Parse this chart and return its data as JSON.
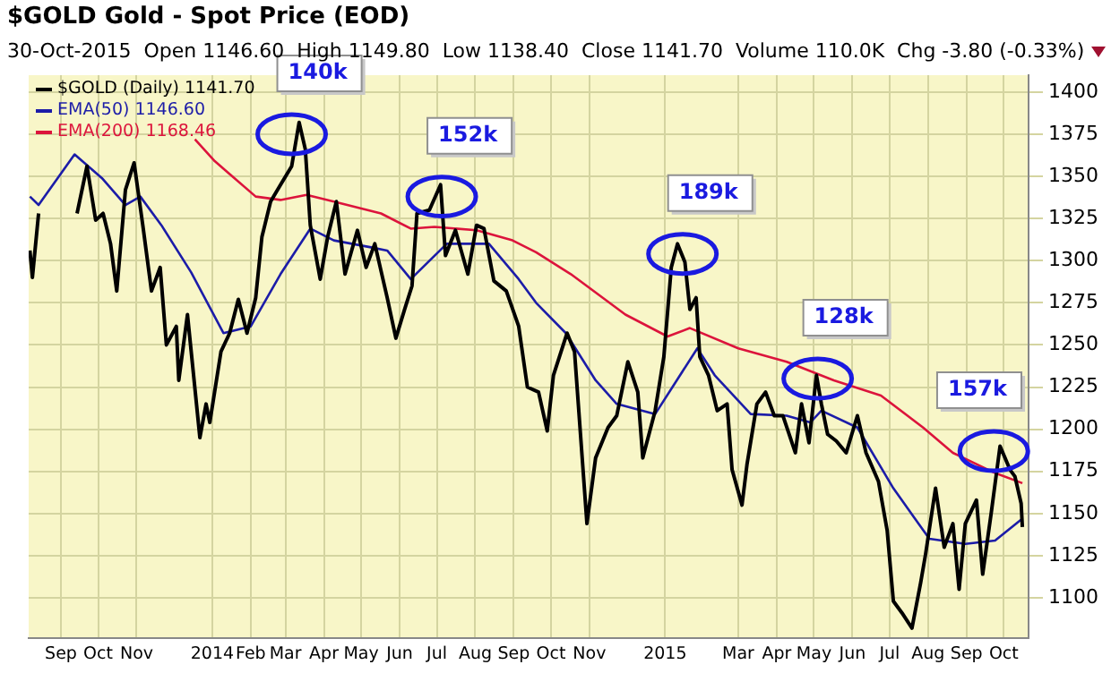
{
  "chart_data": {
    "type": "line",
    "title": "$GOLD Gold - Spot Price (EOD)",
    "subtitle": "30-Oct-2015  Open 1146.60  High 1149.80  Low 1138.40  Close 1141.70  Volume 110.0K  Chg -3.80 (-0.33%)",
    "xlim": [
      "2013-08-20",
      "2015-11-04"
    ],
    "xticks": [
      {
        "value": "2013-09-15",
        "label": "Sep"
      },
      {
        "value": "2013-10-15",
        "label": "Oct"
      },
      {
        "value": "2013-11-15",
        "label": "Nov"
      },
      {
        "value": "2014-01-15",
        "label": "2014"
      },
      {
        "value": "2014-02-15",
        "label": "Feb"
      },
      {
        "value": "2014-03-15",
        "label": "Mar"
      },
      {
        "value": "2014-04-15",
        "label": "Apr"
      },
      {
        "value": "2014-05-15",
        "label": "May"
      },
      {
        "value": "2014-06-15",
        "label": "Jun"
      },
      {
        "value": "2014-07-15",
        "label": "Jul"
      },
      {
        "value": "2014-08-15",
        "label": "Aug"
      },
      {
        "value": "2014-09-15",
        "label": "Sep"
      },
      {
        "value": "2014-10-15",
        "label": "Oct"
      },
      {
        "value": "2014-11-15",
        "label": "Nov"
      },
      {
        "value": "2015-01-15",
        "label": "2015"
      },
      {
        "value": "2015-03-15",
        "label": "Mar"
      },
      {
        "value": "2015-04-15",
        "label": "Apr"
      },
      {
        "value": "2015-05-15",
        "label": "May"
      },
      {
        "value": "2015-06-15",
        "label": "Jun"
      },
      {
        "value": "2015-07-15",
        "label": "Jul"
      },
      {
        "value": "2015-08-15",
        "label": "Aug"
      },
      {
        "value": "2015-09-15",
        "label": "Sep"
      },
      {
        "value": "2015-10-15",
        "label": "Oct"
      }
    ],
    "ylim": [
      1076,
      1410
    ],
    "yticks": [
      1100,
      1125,
      1150,
      1175,
      1200,
      1225,
      1250,
      1275,
      1300,
      1325,
      1350,
      1375,
      1400
    ],
    "grid": true,
    "legend": "top left",
    "marker": "none",
    "line_style": "solid",
    "series": [
      {
        "name": "$GOLD (Daily) 1141.70",
        "color": "#000000",
        "x": [
          "2013-08-21",
          "2013-08-23",
          "2013-08-28",
          "2013-09-04",
          "2013-09-12",
          "2013-09-19",
          "2013-09-24",
          "2013-09-28",
          "2013-10-06",
          "2013-10-13",
          "2013-10-19",
          "2013-10-25",
          "2013-10-30",
          "2013-11-06",
          "2013-11-13",
          "2013-11-20",
          "2013-11-27",
          "2013-12-04",
          "2013-12-09",
          "2013-12-17",
          "2013-12-19",
          "2013-12-26",
          "2014-01-05",
          "2014-01-10",
          "2014-01-13",
          "2014-01-22",
          "2014-01-29",
          "2014-02-05",
          "2014-02-12",
          "2014-02-19",
          "2014-02-24",
          "2014-03-03",
          "2014-03-11",
          "2014-03-20",
          "2014-03-26",
          "2014-03-31",
          "2014-04-04",
          "2014-04-12",
          "2014-04-18",
          "2014-04-25",
          "2014-05-02",
          "2014-05-12",
          "2014-05-19",
          "2014-05-26",
          "2014-06-05",
          "2014-06-12",
          "2014-06-19",
          "2014-06-25",
          "2014-06-29",
          "2014-07-09",
          "2014-07-18",
          "2014-07-22",
          "2014-07-30",
          "2014-08-09",
          "2014-08-16",
          "2014-08-22",
          "2014-08-30",
          "2014-09-09",
          "2014-09-19",
          "2014-09-26",
          "2014-10-05",
          "2014-10-12",
          "2014-10-17",
          "2014-10-28",
          "2014-11-03",
          "2014-11-13",
          "2014-11-20",
          "2014-11-30",
          "2014-12-07",
          "2014-12-16",
          "2014-12-24",
          "2014-12-28",
          "2015-01-07",
          "2015-01-14",
          "2015-01-20",
          "2015-01-25",
          "2015-01-31",
          "2015-02-04",
          "2015-02-09",
          "2015-02-12",
          "2015-02-19",
          "2015-02-26",
          "2015-03-06",
          "2015-03-10",
          "2015-03-18",
          "2015-03-22",
          "2015-03-30",
          "2015-04-06",
          "2015-04-13",
          "2015-04-20",
          "2015-04-30",
          "2015-05-05",
          "2015-05-11",
          "2015-05-17",
          "2015-05-21",
          "2015-05-26",
          "2015-06-02",
          "2015-06-10",
          "2015-06-19",
          "2015-06-26",
          "2015-07-06",
          "2015-07-13",
          "2015-07-18",
          "2015-07-25",
          "2015-08-02",
          "2015-08-09",
          "2015-08-13",
          "2015-08-21",
          "2015-08-28",
          "2015-09-04",
          "2015-09-09",
          "2015-09-14",
          "2015-09-23",
          "2015-09-28",
          "2015-10-05",
          "2015-10-12",
          "2015-10-20",
          "2015-10-24",
          "2015-10-29",
          "2015-10-30"
        ],
        "values": [
          1306,
          1290,
          1328,
          null,
          null,
          null,
          null,
          1328,
          1356,
          1324,
          1328,
          1310,
          1282,
          1342,
          1358,
          1321,
          1282,
          1296,
          1250,
          1261,
          1229,
          1268,
          1195,
          1215,
          1204,
          1246,
          1257,
          1277,
          1257,
          1278,
          1314,
          1335,
          1345,
          1356,
          1382,
          1366,
          1321,
          1289,
          1314,
          1335,
          1292,
          1318,
          1296,
          1310,
          1278,
          1254,
          1271,
          1285,
          1328,
          1330,
          1345,
          1303,
          1318,
          1292,
          1321,
          1319,
          1288,
          1282,
          1261,
          1225,
          1222,
          1199,
          1232,
          1257,
          1246,
          1144,
          1183,
          1201,
          1208,
          1240,
          1222,
          1183,
          1211,
          1243,
          1296,
          1310,
          1299,
          1271,
          1278,
          1243,
          1232,
          1211,
          1215,
          1176,
          1155,
          1179,
          1215,
          1222,
          1208,
          1208,
          1186,
          1215,
          1192,
          1232,
          1215,
          1197,
          1193,
          1186,
          1208,
          1186,
          1169,
          1140,
          1098,
          1091,
          1082,
          1109,
          1126,
          1165,
          1130,
          1144,
          1105,
          1144,
          1158,
          1114,
          1151,
          1190,
          1176,
          1172,
          1156,
          1142
        ]
      },
      {
        "name": "EMA(50) 1146.60",
        "color": "#1c1ca8",
        "x": [
          "2013-08-21",
          "2013-08-28",
          "2013-09-26",
          "2013-10-18",
          "2013-11-06",
          "2013-11-18",
          "2013-12-05",
          "2013-12-29",
          "2014-01-24",
          "2014-02-15",
          "2014-03-11",
          "2014-04-04",
          "2014-04-23",
          "2014-05-22",
          "2014-06-05",
          "2014-06-24",
          "2014-07-23",
          "2014-08-06",
          "2014-08-26",
          "2014-09-19",
          "2014-10-03",
          "2014-10-27",
          "2014-11-20",
          "2014-12-07",
          "2015-01-07",
          "2015-02-10",
          "2015-02-24",
          "2015-03-25",
          "2015-04-23",
          "2015-05-12",
          "2015-05-21",
          "2015-06-19",
          "2015-07-18",
          "2015-08-16",
          "2015-09-14",
          "2015-10-08",
          "2015-10-30"
        ],
        "values": [
          1338,
          1333,
          1363,
          1349,
          1333,
          1338,
          1321,
          1293,
          1257,
          1261,
          1292,
          1319,
          1312,
          1308,
          1306,
          1289,
          1310,
          1310,
          1310,
          1289,
          1275,
          1257,
          1229,
          1215,
          1209,
          1248,
          1232,
          1209,
          1208,
          1204,
          1211,
          1201,
          1165,
          1135,
          1132,
          1134,
          1147
        ]
      },
      {
        "name": "EMA(200) 1168.46",
        "color": "#dc143c",
        "x": [
          "2014-01-01",
          "2014-01-17",
          "2014-02-19",
          "2014-03-11",
          "2014-04-01",
          "2014-04-23",
          "2014-05-31",
          "2014-06-24",
          "2014-07-13",
          "2014-08-16",
          "2014-09-14",
          "2014-10-03",
          "2014-10-31",
          "2014-12-14",
          "2015-01-17",
          "2015-02-04",
          "2015-03-15",
          "2015-04-23",
          "2015-05-31",
          "2015-07-08",
          "2015-08-11",
          "2015-09-04",
          "2015-10-08",
          "2015-10-30"
        ],
        "values": [
          1372,
          1359,
          1338,
          1336,
          1339,
          1335,
          1328,
          1319,
          1320,
          1318,
          1312,
          1305,
          1292,
          1268,
          1255,
          1260,
          1248,
          1240,
          1229,
          1220,
          1201,
          1186,
          1174,
          1168
        ]
      }
    ],
    "annotations": [
      {
        "text": "140k",
        "x": "2014-03-20",
        "y": 1375
      },
      {
        "text": "152k",
        "x": "2014-07-19",
        "y": 1338
      },
      {
        "text": "189k",
        "x": "2015-01-29",
        "y": 1304
      },
      {
        "text": "128k",
        "x": "2015-05-18",
        "y": 1230
      },
      {
        "text": "157k",
        "x": "2015-10-07",
        "y": 1187
      }
    ]
  }
}
